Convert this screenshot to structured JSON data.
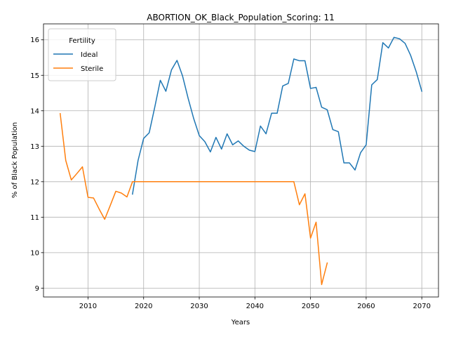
{
  "chart_data": {
    "type": "line",
    "title": "ABORTION_OK_Black_Population_Scoring: 11",
    "xlabel": "Years",
    "ylabel": "% of Black Population",
    "xlim": [
      2002,
      2073
    ],
    "ylim": [
      8.75,
      16.45
    ],
    "xticks": [
      2010,
      2020,
      2030,
      2040,
      2050,
      2060,
      2070
    ],
    "yticks": [
      9,
      10,
      11,
      12,
      13,
      14,
      15,
      16
    ],
    "grid": true,
    "legend": {
      "title": "Fertility",
      "placement": "upper left"
    },
    "series": [
      {
        "name": "Ideal",
        "color": "#1f77b4",
        "points": [
          [
            2018,
            11.65
          ],
          [
            2019,
            12.6
          ],
          [
            2020,
            13.22
          ],
          [
            2021,
            13.38
          ],
          [
            2022,
            14.1
          ],
          [
            2023,
            14.86
          ],
          [
            2024,
            14.55
          ],
          [
            2025,
            15.15
          ],
          [
            2026,
            15.42
          ],
          [
            2027,
            14.98
          ],
          [
            2028,
            14.35
          ],
          [
            2029,
            13.78
          ],
          [
            2030,
            13.3
          ],
          [
            2031,
            13.13
          ],
          [
            2032,
            12.84
          ],
          [
            2033,
            13.25
          ],
          [
            2034,
            12.92
          ],
          [
            2035,
            13.35
          ],
          [
            2036,
            13.04
          ],
          [
            2037,
            13.15
          ],
          [
            2038,
            13.0
          ],
          [
            2039,
            12.89
          ],
          [
            2040,
            12.85
          ],
          [
            2041,
            13.57
          ],
          [
            2042,
            13.35
          ],
          [
            2043,
            13.93
          ],
          [
            2044,
            13.93
          ],
          [
            2045,
            14.7
          ],
          [
            2046,
            14.77
          ],
          [
            2047,
            15.46
          ],
          [
            2048,
            15.41
          ],
          [
            2049,
            15.41
          ],
          [
            2050,
            14.63
          ],
          [
            2051,
            14.66
          ],
          [
            2052,
            14.1
          ],
          [
            2053,
            14.03
          ],
          [
            2054,
            13.47
          ],
          [
            2055,
            13.41
          ],
          [
            2056,
            12.53
          ],
          [
            2057,
            12.53
          ],
          [
            2058,
            12.33
          ],
          [
            2059,
            12.82
          ],
          [
            2060,
            13.04
          ],
          [
            2061,
            14.73
          ],
          [
            2062,
            14.88
          ],
          [
            2063,
            15.92
          ],
          [
            2064,
            15.77
          ],
          [
            2065,
            16.07
          ],
          [
            2066,
            16.03
          ],
          [
            2067,
            15.9
          ],
          [
            2068,
            15.56
          ],
          [
            2069,
            15.1
          ],
          [
            2070,
            14.55
          ]
        ]
      },
      {
        "name": "Sterile",
        "color": "#ff7f0e",
        "points": [
          [
            2005,
            13.92
          ],
          [
            2006,
            12.6
          ],
          [
            2007,
            12.05
          ],
          [
            2008,
            12.23
          ],
          [
            2009,
            12.42
          ],
          [
            2010,
            11.56
          ],
          [
            2011,
            11.54
          ],
          [
            2012,
            11.23
          ],
          [
            2013,
            10.94
          ],
          [
            2014,
            11.33
          ],
          [
            2015,
            11.73
          ],
          [
            2016,
            11.68
          ],
          [
            2017,
            11.57
          ],
          [
            2018,
            12.0
          ],
          [
            2019,
            12.0
          ],
          [
            2020,
            12.0
          ],
          [
            2021,
            12.0
          ],
          [
            2022,
            12.0
          ],
          [
            2023,
            12.0
          ],
          [
            2024,
            12.0
          ],
          [
            2025,
            12.0
          ],
          [
            2026,
            12.0
          ],
          [
            2027,
            12.0
          ],
          [
            2028,
            12.0
          ],
          [
            2029,
            12.0
          ],
          [
            2030,
            12.0
          ],
          [
            2031,
            12.0
          ],
          [
            2032,
            12.0
          ],
          [
            2033,
            12.0
          ],
          [
            2034,
            12.0
          ],
          [
            2035,
            12.0
          ],
          [
            2036,
            12.0
          ],
          [
            2037,
            12.0
          ],
          [
            2038,
            12.0
          ],
          [
            2039,
            12.0
          ],
          [
            2040,
            12.0
          ],
          [
            2041,
            12.0
          ],
          [
            2042,
            12.0
          ],
          [
            2043,
            12.0
          ],
          [
            2044,
            12.0
          ],
          [
            2045,
            12.0
          ],
          [
            2046,
            12.0
          ],
          [
            2047,
            12.0
          ],
          [
            2048,
            11.35
          ],
          [
            2049,
            11.66
          ],
          [
            2050,
            10.41
          ],
          [
            2051,
            10.86
          ],
          [
            2052,
            9.1
          ],
          [
            2053,
            9.71
          ]
        ]
      }
    ]
  }
}
